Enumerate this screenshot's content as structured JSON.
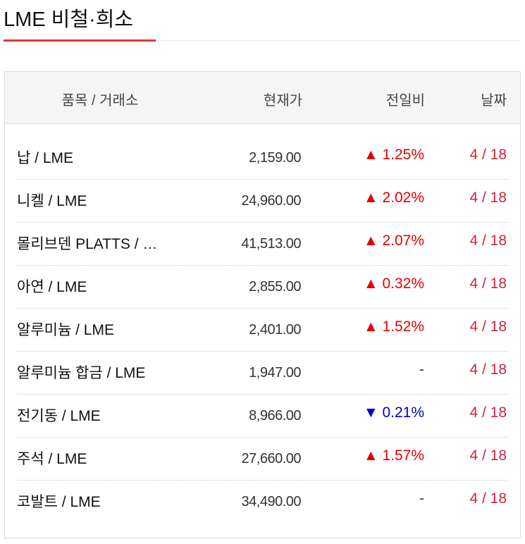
{
  "title": "LME 비철·희소",
  "colors": {
    "accent": "#d23b3b",
    "up": "#e50000",
    "down": "#0000cc",
    "date": "#c8283c"
  },
  "headers": {
    "name": "품목 / 거래소",
    "price": "현재가",
    "change": "전일비",
    "date": "날짜"
  },
  "rows": [
    {
      "name": "납 / LME",
      "price": "2,159.00",
      "change": "▲ 1.25%",
      "dir": "up",
      "date": "4 / 18"
    },
    {
      "name": "니켈 / LME",
      "price": "24,960.00",
      "change": "▲ 2.02%",
      "dir": "up",
      "date": "4 / 18"
    },
    {
      "name": "몰리브덴 PLATTS / …",
      "price": "41,513.00",
      "change": "▲ 2.07%",
      "dir": "up",
      "date": "4 / 18"
    },
    {
      "name": "아연 / LME",
      "price": "2,855.00",
      "change": "▲ 0.32%",
      "dir": "up",
      "date": "4 / 18"
    },
    {
      "name": "알루미늄 / LME",
      "price": "2,401.00",
      "change": "▲ 1.52%",
      "dir": "up",
      "date": "4 / 18"
    },
    {
      "name": "알루미늄 합금 / LME",
      "price": "1,947.00",
      "change": "-",
      "dir": "flat",
      "date": "4 / 18"
    },
    {
      "name": "전기동 / LME",
      "price": "8,966.00",
      "change": "▼ 0.21%",
      "dir": "down",
      "date": "4 / 18"
    },
    {
      "name": "주석 / LME",
      "price": "27,660.00",
      "change": "▲ 1.57%",
      "dir": "up",
      "date": "4 / 18"
    },
    {
      "name": "코발트 / LME",
      "price": "34,490.00",
      "change": "-",
      "dir": "flat",
      "date": "4 / 18"
    }
  ]
}
